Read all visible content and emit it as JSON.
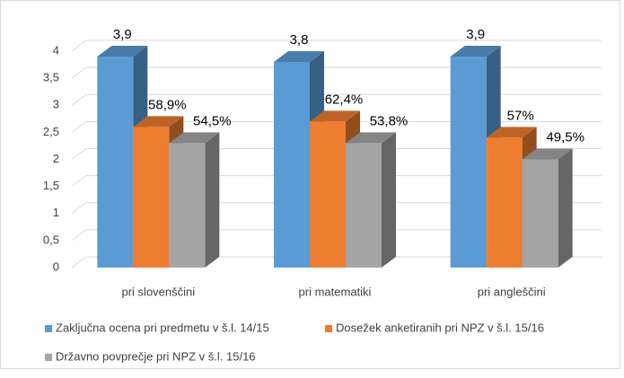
{
  "chart_data": {
    "type": "bar3d",
    "categories": [
      "pri slovenščini",
      "pri matematiki",
      "pri angleščini"
    ],
    "series": [
      {
        "name": "Zaključna ocena pri predmetu v š.l. 14/15",
        "color": "#5b9bd5",
        "values": [
          3.9,
          3.8,
          3.9
        ],
        "value_labels": [
          "3,9",
          "3,8",
          "3,9"
        ]
      },
      {
        "name": "Dosežek anketiranih pri NPZ v š.l. 15/16",
        "color": "#ed7d31",
        "values": [
          2.6,
          2.7,
          2.4
        ],
        "value_labels": [
          "58,9%",
          "62,4%",
          "57%"
        ]
      },
      {
        "name": "Državno povprečje pri NPZ v š.l. 15/16",
        "color": "#a5a5a5",
        "values": [
          2.3,
          2.3,
          2.0
        ],
        "value_labels": [
          "54,5%",
          "53,8%",
          "49,5%"
        ]
      }
    ],
    "ylim": [
      0,
      4
    ],
    "yticks": [
      0,
      {
        "value": 0.5,
        "label": "0,5"
      },
      1,
      {
        "value": 1.5,
        "label": "1,5"
      },
      2,
      {
        "value": 2.5,
        "label": "2,5"
      },
      3,
      {
        "value": 3.5,
        "label": "3,5"
      },
      4
    ],
    "grid": true,
    "legend": "bottom"
  }
}
